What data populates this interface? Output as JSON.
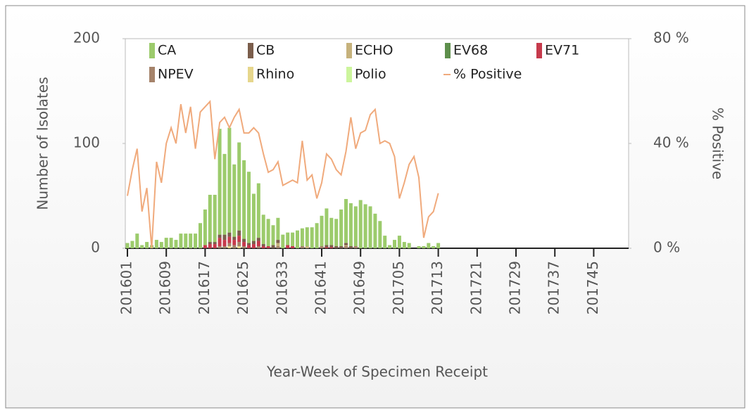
{
  "chart_data": {
    "type": "stacked-bar-line",
    "x_label": "Year-Week of Specimen Receipt",
    "y_label": "Number of Isolates",
    "y2_label": "% Positive",
    "categories": [
      "201601",
      null,
      null,
      null,
      null,
      null,
      null,
      null,
      "201609",
      null,
      null,
      null,
      null,
      null,
      null,
      null,
      "201617",
      null,
      null,
      null,
      null,
      null,
      null,
      null,
      "201625",
      null,
      null,
      null,
      null,
      null,
      null,
      null,
      "201633",
      null,
      null,
      null,
      null,
      null,
      null,
      null,
      "201641",
      null,
      null,
      null,
      null,
      null,
      null,
      null,
      "201649",
      null,
      null,
      null,
      null,
      null,
      null,
      null,
      "201705",
      null,
      null,
      null,
      null,
      null,
      null,
      null,
      "201713",
      null,
      null,
      null,
      null,
      null,
      null,
      null,
      "201721",
      null,
      null,
      null,
      null,
      null,
      null,
      null,
      "201729",
      null,
      null,
      null,
      null,
      null,
      null,
      null,
      "201737",
      null,
      null,
      null,
      null,
      null,
      null,
      null,
      "201745",
      null,
      null,
      null,
      null,
      null,
      null,
      null
    ],
    "ylim": [
      0,
      200
    ],
    "yticks": [
      0,
      100,
      200
    ],
    "y2lim": [
      0,
      80
    ],
    "y2ticks": [
      {
        "value": 0,
        "label": "0 %"
      },
      {
        "value": 40,
        "label": "40 %"
      },
      {
        "value": 80,
        "label": "80 %"
      }
    ],
    "series": [
      {
        "name": "CA",
        "color": "#9ccb6c",
        "values": [
          5,
          7,
          14,
          3,
          6,
          3,
          8,
          6,
          10,
          10,
          8,
          14,
          14,
          14,
          14,
          24,
          34,
          45,
          45,
          101,
          77,
          100,
          69,
          84,
          75,
          68,
          45,
          52,
          28,
          26,
          19,
          21,
          13,
          12,
          13,
          17,
          17,
          18,
          20,
          24,
          29,
          35,
          26,
          26,
          35,
          42,
          41,
          38,
          46,
          42,
          40,
          33,
          26,
          12,
          3,
          8,
          12,
          6,
          5,
          0,
          2,
          2,
          5,
          2,
          5,
          null,
          null,
          null,
          null,
          null,
          null,
          null,
          null,
          null,
          null,
          null,
          null,
          null,
          null,
          null,
          null,
          null,
          null,
          null,
          null,
          null,
          null,
          null,
          null,
          null,
          null,
          null,
          null,
          null,
          null,
          null,
          null,
          null,
          null,
          null,
          null,
          null,
          null,
          null
        ]
      },
      {
        "name": "CB",
        "color": "#7b5e4c",
        "values": [
          0,
          0,
          0,
          0,
          0,
          0,
          0,
          0,
          0,
          0,
          0,
          0,
          0,
          0,
          0,
          0,
          0,
          2,
          2,
          3,
          5,
          4,
          3,
          5,
          3,
          2,
          3,
          3,
          2,
          0,
          3,
          3,
          0,
          0,
          0,
          0,
          0,
          0,
          0,
          0,
          0,
          2,
          2,
          2,
          2,
          2,
          2,
          0,
          0,
          0,
          0,
          0,
          0,
          0,
          0,
          0,
          0,
          0,
          0,
          0,
          0,
          0,
          0,
          0,
          0,
          null,
          null,
          null,
          null,
          null,
          null,
          null,
          null,
          null,
          null,
          null,
          null,
          null,
          null,
          null,
          null,
          null,
          null,
          null,
          null,
          null,
          null,
          null,
          null,
          null,
          null,
          null,
          null,
          null,
          null,
          null,
          null,
          null,
          null,
          null,
          null,
          null,
          null,
          null
        ]
      },
      {
        "name": "ECHO",
        "color": "#c6b27c",
        "values": [
          0,
          0,
          0,
          0,
          0,
          0,
          0,
          0,
          0,
          0,
          0,
          0,
          0,
          0,
          0,
          0,
          0,
          0,
          0,
          0,
          0,
          0,
          0,
          0,
          0,
          0,
          0,
          0,
          0,
          0,
          0,
          3,
          0,
          0,
          0,
          0,
          0,
          2,
          0,
          0,
          0,
          0,
          0,
          0,
          0,
          1,
          0,
          0,
          0,
          0,
          0,
          0,
          0,
          0,
          0,
          0,
          0,
          0,
          0,
          0,
          0,
          0,
          0,
          0,
          0,
          null,
          null,
          null,
          null,
          null,
          null,
          null,
          null,
          null,
          null,
          null,
          null,
          null,
          null,
          null,
          null,
          null,
          null,
          null,
          null,
          null,
          null,
          null,
          null,
          null,
          null,
          null,
          null,
          null,
          null,
          null,
          null,
          null,
          null,
          null,
          null,
          null,
          null,
          null
        ]
      },
      {
        "name": "EV68",
        "color": "#5e8f4c",
        "values": [
          0,
          0,
          0,
          0,
          0,
          0,
          0,
          0,
          0,
          0,
          0,
          0,
          0,
          0,
          0,
          0,
          0,
          0,
          0,
          0,
          0,
          0,
          0,
          0,
          0,
          0,
          0,
          0,
          0,
          0,
          0,
          0,
          0,
          0,
          0,
          0,
          0,
          0,
          0,
          0,
          0,
          0,
          0,
          0,
          0,
          0,
          0,
          0,
          0,
          0,
          0,
          0,
          0,
          0,
          0,
          0,
          0,
          0,
          0,
          0,
          0,
          0,
          0,
          0,
          0,
          null,
          null,
          null,
          null,
          null,
          null,
          null,
          null,
          null,
          null,
          null,
          null,
          null,
          null,
          null,
          null,
          null,
          null,
          null,
          null,
          null,
          null,
          null,
          null,
          null,
          null,
          null,
          null,
          null,
          null,
          null,
          null,
          null,
          null,
          null,
          null,
          null,
          null,
          null
        ]
      },
      {
        "name": "EV71",
        "color": "#c63a4c",
        "values": [
          0,
          0,
          0,
          0,
          0,
          0,
          0,
          0,
          0,
          0,
          0,
          0,
          0,
          0,
          0,
          0,
          3,
          4,
          4,
          8,
          6,
          6,
          5,
          6,
          4,
          3,
          4,
          5,
          2,
          2,
          0,
          0,
          0,
          3,
          2,
          0,
          0,
          0,
          0,
          0,
          0,
          1,
          1,
          0,
          0,
          0,
          0,
          0,
          0,
          0,
          0,
          0,
          0,
          0,
          0,
          0,
          0,
          0,
          0,
          0,
          0,
          0,
          0,
          0,
          0,
          null,
          null,
          null,
          null,
          null,
          null,
          null,
          null,
          null,
          null,
          null,
          null,
          null,
          null,
          null,
          null,
          null,
          null,
          null,
          null,
          null,
          null,
          null,
          null,
          null,
          null,
          null,
          null,
          null,
          null,
          null,
          null,
          null,
          null,
          null,
          null,
          null,
          null,
          null
        ]
      },
      {
        "name": "NPEV",
        "color": "#a5836a",
        "values": [
          0,
          0,
          0,
          0,
          0,
          0,
          0,
          0,
          0,
          0,
          0,
          0,
          0,
          0,
          0,
          0,
          0,
          0,
          0,
          2,
          2,
          3,
          3,
          4,
          2,
          0,
          0,
          2,
          0,
          0,
          0,
          2,
          0,
          0,
          0,
          0,
          2,
          0,
          0,
          0,
          2,
          0,
          0,
          0,
          0,
          2,
          0,
          2,
          0,
          0,
          0,
          0,
          0,
          0,
          0,
          0,
          0,
          0,
          0,
          0,
          0,
          0,
          0,
          0,
          0,
          null,
          null,
          null,
          null,
          null,
          null,
          null,
          null,
          null,
          null,
          null,
          null,
          null,
          null,
          null,
          null,
          null,
          null,
          null,
          null,
          null,
          null,
          null,
          null,
          null,
          null,
          null,
          null,
          null,
          null,
          null,
          null,
          null,
          null,
          null,
          null,
          null,
          null,
          null
        ]
      },
      {
        "name": "Rhino",
        "color": "#e6d68c",
        "values": [
          0,
          0,
          0,
          0,
          0,
          0,
          0,
          0,
          0,
          0,
          0,
          0,
          0,
          0,
          0,
          0,
          0,
          0,
          0,
          0,
          0,
          2,
          0,
          2,
          0,
          0,
          0,
          0,
          0,
          0,
          0,
          0,
          0,
          0,
          0,
          0,
          0,
          0,
          0,
          0,
          0,
          0,
          0,
          0,
          0,
          0,
          0,
          0,
          0,
          0,
          0,
          0,
          0,
          0,
          0,
          0,
          0,
          0,
          0,
          0,
          0,
          0,
          0,
          0,
          0,
          null,
          null,
          null,
          null,
          null,
          null,
          null,
          null,
          null,
          null,
          null,
          null,
          null,
          null,
          null,
          null,
          null,
          null,
          null,
          null,
          null,
          null,
          null,
          null,
          null,
          null,
          null,
          null,
          null,
          null,
          null,
          null,
          null,
          null,
          null,
          null,
          null,
          null,
          null
        ]
      },
      {
        "name": "Polio",
        "color": "#ccf59c",
        "values": [
          0,
          0,
          0,
          0,
          0,
          0,
          0,
          0,
          0,
          0,
          0,
          0,
          0,
          0,
          0,
          0,
          0,
          0,
          0,
          0,
          0,
          0,
          0,
          0,
          0,
          0,
          0,
          0,
          0,
          0,
          0,
          0,
          0,
          0,
          0,
          0,
          0,
          0,
          0,
          0,
          0,
          0,
          0,
          0,
          0,
          0,
          0,
          0,
          0,
          0,
          0,
          0,
          0,
          0,
          0,
          0,
          0,
          0,
          0,
          0,
          0,
          0,
          0,
          0,
          0,
          null,
          null,
          null,
          null,
          null,
          null,
          null,
          null,
          null,
          null,
          null,
          null,
          null,
          null,
          null,
          null,
          null,
          null,
          null,
          null,
          null,
          null,
          null,
          null,
          null,
          null,
          null,
          null,
          null,
          null,
          null,
          null,
          null,
          null,
          null,
          null,
          null,
          null,
          null
        ]
      },
      {
        "name": "% Positive",
        "color": "#f0aa7c",
        "axis": "y2",
        "type": "line",
        "values": [
          20,
          30,
          38,
          14,
          23,
          0,
          33,
          25,
          40,
          46,
          40,
          55,
          44,
          54,
          38,
          52,
          54,
          56,
          34,
          48,
          50,
          46,
          50,
          53,
          44,
          44,
          46,
          44,
          36,
          29,
          30,
          33,
          24,
          25,
          26,
          25,
          41,
          26,
          28,
          19,
          25,
          36,
          34,
          30,
          28,
          37,
          50,
          38,
          44,
          45,
          51,
          53,
          40,
          41,
          40,
          35,
          19,
          25,
          32,
          35,
          27,
          4,
          12,
          14,
          21,
          null,
          null,
          null,
          null,
          null,
          null,
          null,
          null,
          null,
          null,
          null,
          null,
          null,
          null,
          null,
          null,
          null,
          null,
          null,
          null,
          null,
          null,
          null,
          null,
          null,
          null,
          null,
          null,
          null,
          null,
          null,
          null,
          null,
          null,
          null,
          null,
          null,
          null,
          null
        ]
      }
    ]
  }
}
